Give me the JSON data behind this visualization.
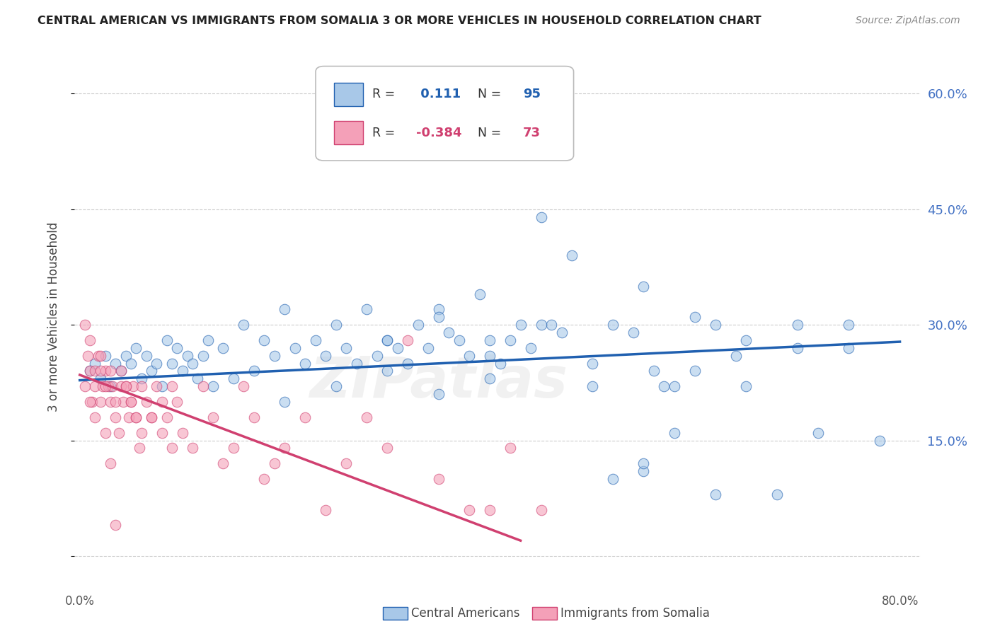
{
  "title": "CENTRAL AMERICAN VS IMMIGRANTS FROM SOMALIA 3 OR MORE VEHICLES IN HOUSEHOLD CORRELATION CHART",
  "source": "Source: ZipAtlas.com",
  "ylabel": "3 or more Vehicles in Household",
  "legend_label1": "Central Americans",
  "legend_label2": "Immigrants from Somalia",
  "R1": "0.111",
  "N1": "95",
  "R2": "-0.384",
  "N2": "73",
  "color_blue": "#a8c8e8",
  "color_pink": "#f4a0b8",
  "line_blue": "#2060b0",
  "line_pink": "#d04070",
  "watermark": "ZIPatlas",
  "grid_color": "#cccccc",
  "xlim": [
    -0.005,
    0.82
  ],
  "ylim": [
    -0.04,
    0.66
  ],
  "x_ticks": [
    0.0,
    0.1,
    0.2,
    0.3,
    0.4,
    0.5,
    0.6,
    0.7,
    0.8
  ],
  "y_ticks": [
    0.0,
    0.15,
    0.3,
    0.45,
    0.6
  ],
  "right_y_labels": [
    "15.0%",
    "30.0%",
    "45.0%",
    "60.0%"
  ],
  "right_y_ticks": [
    0.15,
    0.3,
    0.45,
    0.6
  ],
  "blue_x": [
    0.01,
    0.015,
    0.02,
    0.025,
    0.03,
    0.035,
    0.04,
    0.045,
    0.05,
    0.055,
    0.06,
    0.065,
    0.07,
    0.075,
    0.08,
    0.085,
    0.09,
    0.095,
    0.1,
    0.105,
    0.11,
    0.115,
    0.12,
    0.125,
    0.13,
    0.14,
    0.15,
    0.16,
    0.17,
    0.18,
    0.19,
    0.2,
    0.21,
    0.22,
    0.23,
    0.24,
    0.25,
    0.26,
    0.27,
    0.28,
    0.29,
    0.3,
    0.31,
    0.32,
    0.33,
    0.34,
    0.35,
    0.36,
    0.37,
    0.38,
    0.39,
    0.4,
    0.41,
    0.42,
    0.43,
    0.44,
    0.45,
    0.46,
    0.47,
    0.48,
    0.5,
    0.52,
    0.54,
    0.55,
    0.56,
    0.57,
    0.58,
    0.6,
    0.62,
    0.64,
    0.52,
    0.55,
    0.58,
    0.62,
    0.65,
    0.68,
    0.7,
    0.72,
    0.75,
    0.78,
    0.3,
    0.35,
    0.4,
    0.45,
    0.5,
    0.55,
    0.6,
    0.65,
    0.7,
    0.75,
    0.2,
    0.25,
    0.3,
    0.35,
    0.4
  ],
  "blue_y": [
    0.24,
    0.25,
    0.23,
    0.26,
    0.22,
    0.25,
    0.24,
    0.26,
    0.25,
    0.27,
    0.23,
    0.26,
    0.24,
    0.25,
    0.22,
    0.28,
    0.25,
    0.27,
    0.24,
    0.26,
    0.25,
    0.23,
    0.26,
    0.28,
    0.22,
    0.27,
    0.23,
    0.3,
    0.24,
    0.28,
    0.26,
    0.32,
    0.27,
    0.25,
    0.28,
    0.26,
    0.3,
    0.27,
    0.25,
    0.32,
    0.26,
    0.28,
    0.27,
    0.25,
    0.3,
    0.27,
    0.32,
    0.29,
    0.28,
    0.26,
    0.34,
    0.28,
    0.25,
    0.28,
    0.3,
    0.27,
    0.44,
    0.3,
    0.29,
    0.39,
    0.25,
    0.3,
    0.29,
    0.11,
    0.24,
    0.22,
    0.22,
    0.24,
    0.3,
    0.26,
    0.1,
    0.12,
    0.16,
    0.08,
    0.22,
    0.08,
    0.3,
    0.16,
    0.27,
    0.15,
    0.28,
    0.31,
    0.26,
    0.3,
    0.22,
    0.35,
    0.31,
    0.28,
    0.27,
    0.3,
    0.2,
    0.22,
    0.24,
    0.21,
    0.23
  ],
  "pink_x": [
    0.005,
    0.008,
    0.01,
    0.012,
    0.015,
    0.018,
    0.02,
    0.022,
    0.025,
    0.028,
    0.03,
    0.032,
    0.035,
    0.038,
    0.04,
    0.042,
    0.045,
    0.048,
    0.05,
    0.052,
    0.055,
    0.058,
    0.06,
    0.065,
    0.07,
    0.075,
    0.08,
    0.085,
    0.09,
    0.095,
    0.01,
    0.015,
    0.02,
    0.025,
    0.03,
    0.035,
    0.04,
    0.045,
    0.05,
    0.055,
    0.06,
    0.07,
    0.08,
    0.09,
    0.1,
    0.11,
    0.12,
    0.13,
    0.14,
    0.15,
    0.16,
    0.17,
    0.18,
    0.19,
    0.2,
    0.22,
    0.24,
    0.26,
    0.28,
    0.3,
    0.32,
    0.35,
    0.38,
    0.4,
    0.42,
    0.45,
    0.005,
    0.01,
    0.015,
    0.02,
    0.025,
    0.03,
    0.035
  ],
  "pink_y": [
    0.22,
    0.26,
    0.24,
    0.2,
    0.22,
    0.26,
    0.2,
    0.22,
    0.24,
    0.22,
    0.2,
    0.22,
    0.18,
    0.16,
    0.22,
    0.2,
    0.22,
    0.18,
    0.2,
    0.22,
    0.18,
    0.14,
    0.22,
    0.2,
    0.18,
    0.22,
    0.2,
    0.18,
    0.22,
    0.2,
    0.28,
    0.24,
    0.26,
    0.22,
    0.24,
    0.2,
    0.24,
    0.22,
    0.2,
    0.18,
    0.16,
    0.18,
    0.16,
    0.14,
    0.16,
    0.14,
    0.22,
    0.18,
    0.12,
    0.14,
    0.22,
    0.18,
    0.1,
    0.12,
    0.14,
    0.18,
    0.06,
    0.12,
    0.18,
    0.14,
    0.28,
    0.1,
    0.06,
    0.06,
    0.14,
    0.06,
    0.3,
    0.2,
    0.18,
    0.24,
    0.16,
    0.12,
    0.04
  ],
  "blue_line_x": [
    0.0,
    0.8
  ],
  "blue_line_y": [
    0.228,
    0.278
  ],
  "pink_line_x": [
    0.0,
    0.43
  ],
  "pink_line_y": [
    0.235,
    0.02
  ]
}
